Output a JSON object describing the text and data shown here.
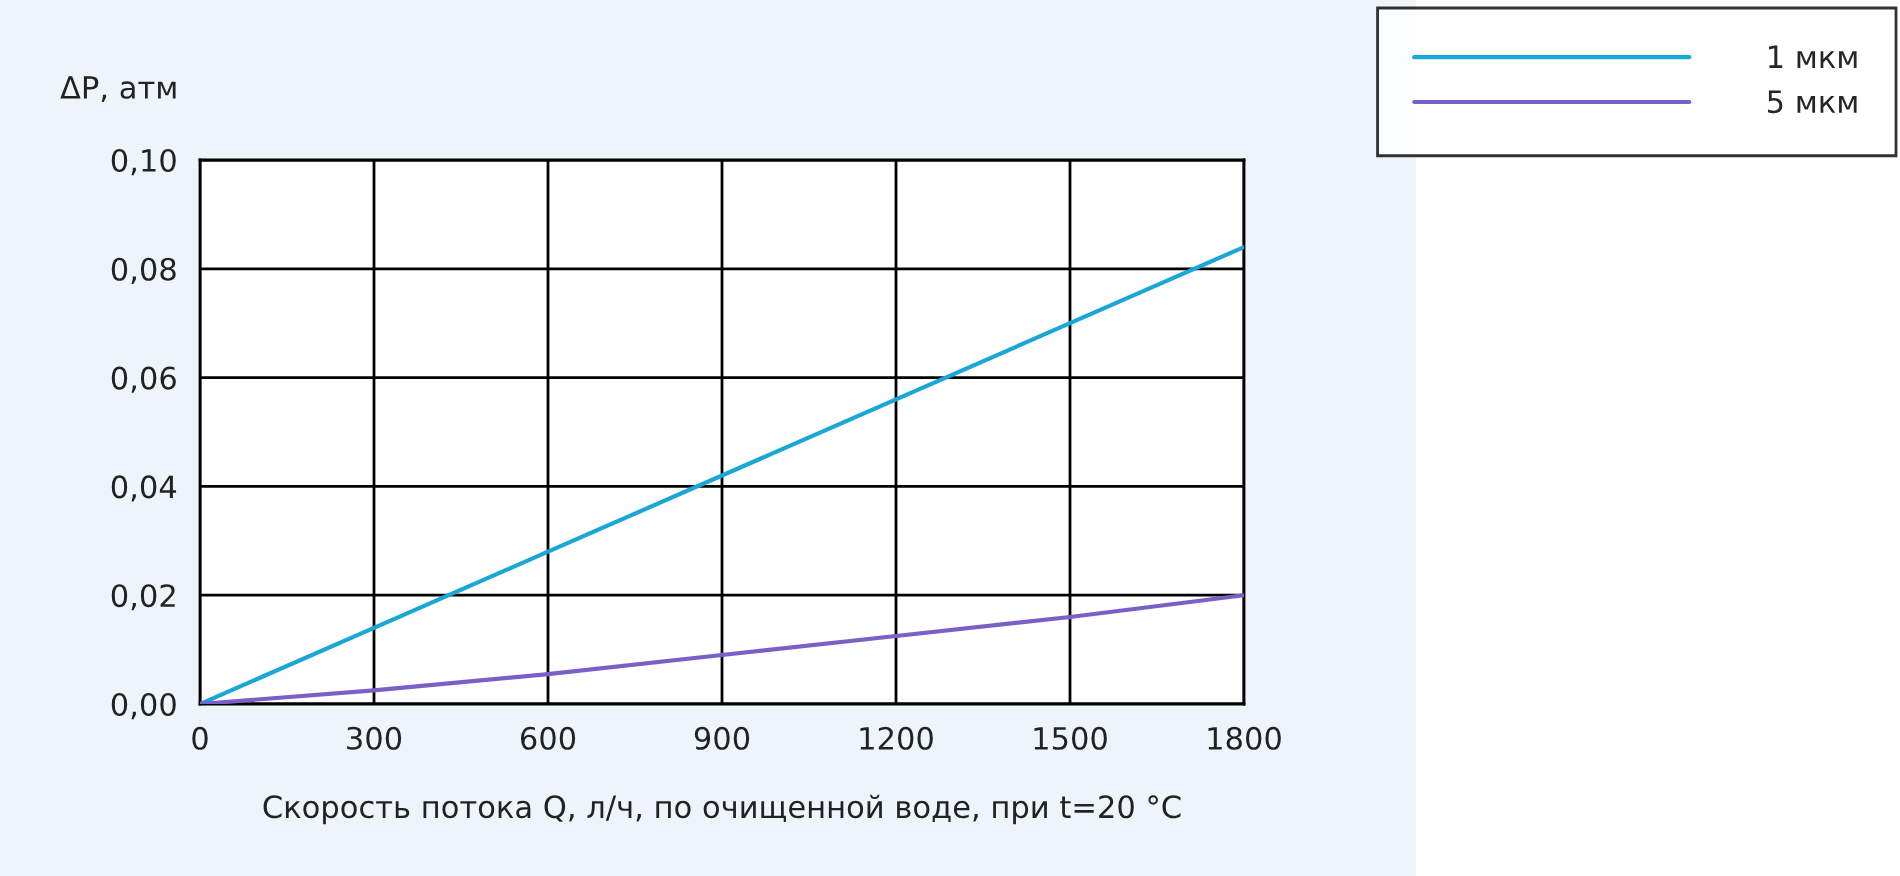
{
  "chart_data": {
    "type": "line",
    "xlabel": "Скорость потока Q, л/ч, по очищенной воде, при t=20 °C",
    "ylabel": "ΔP, атм",
    "x": [
      0,
      300,
      600,
      900,
      1200,
      1500,
      1800
    ],
    "series": [
      {
        "name": "1 мкм",
        "color": "#1ba6d8",
        "values": [
          0,
          0.014,
          0.028,
          0.042,
          0.056,
          0.07,
          0.084
        ]
      },
      {
        "name": "5 мкм",
        "color": "#7a5fc6",
        "values": [
          0,
          0.0025,
          0.0055,
          0.009,
          0.0125,
          0.016,
          0.02
        ]
      }
    ],
    "xlim": [
      0,
      1800
    ],
    "xticks": [
      0,
      300,
      600,
      900,
      1200,
      1500,
      1800
    ],
    "ylim": [
      0,
      0.1
    ],
    "yticks": [
      {
        "value": 0,
        "label": "0,00"
      },
      {
        "value": 0.02,
        "label": "0,02"
      },
      {
        "value": 0.04,
        "label": "0,04"
      },
      {
        "value": 0.06,
        "label": "0,06"
      },
      {
        "value": 0.08,
        "label": "0,08"
      },
      {
        "value": 0.1,
        "label": "0,10"
      }
    ],
    "grid": true,
    "legend": "top right",
    "marker": "none",
    "line_style": "solid"
  }
}
